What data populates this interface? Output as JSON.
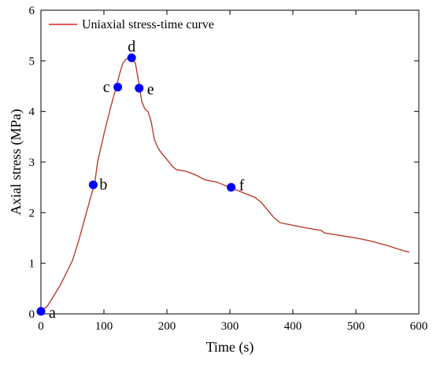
{
  "chart_data": {
    "type": "line",
    "xlabel": "Time (s)",
    "ylabel": "Axial stress (MPa)",
    "xlim": [
      0,
      600
    ],
    "ylim": [
      0,
      6
    ],
    "xticks": [
      0,
      100,
      200,
      300,
      400,
      500,
      600
    ],
    "yticks": [
      0,
      1,
      2,
      3,
      4,
      5,
      6
    ],
    "grid": false,
    "legend_position": "top-left",
    "series": [
      {
        "name": "Uniaxial stress-time curve",
        "color": "#e02020",
        "x": [
          0,
          10,
          20,
          30,
          40,
          50,
          60,
          70,
          80,
          85,
          90,
          100,
          110,
          120,
          125,
          130,
          135,
          140,
          145,
          150,
          155,
          160,
          165,
          170,
          175,
          180,
          185,
          190,
          200,
          210,
          215,
          230,
          245,
          260,
          280,
          300,
          320,
          340,
          350,
          360,
          370,
          380,
          400,
          420,
          445,
          450,
          460,
          475,
          500,
          520,
          535,
          550,
          575,
          585
        ],
        "y": [
          0.05,
          0.15,
          0.35,
          0.55,
          0.8,
          1.05,
          1.45,
          1.9,
          2.35,
          2.55,
          3.0,
          3.55,
          4.05,
          4.5,
          4.75,
          4.95,
          5.03,
          5.06,
          5.05,
          4.95,
          4.6,
          4.2,
          4.05,
          4.0,
          3.8,
          3.45,
          3.3,
          3.2,
          3.05,
          2.9,
          2.85,
          2.82,
          2.75,
          2.65,
          2.6,
          2.5,
          2.4,
          2.3,
          2.2,
          2.05,
          1.9,
          1.8,
          1.75,
          1.7,
          1.65,
          1.6,
          1.58,
          1.55,
          1.5,
          1.45,
          1.4,
          1.35,
          1.25,
          1.22
        ]
      }
    ],
    "points": [
      {
        "label": "a",
        "x": 0,
        "y": 0.05
      },
      {
        "label": "b",
        "x": 83,
        "y": 2.55
      },
      {
        "label": "c",
        "x": 122,
        "y": 4.48
      },
      {
        "label": "d",
        "x": 144,
        "y": 5.06
      },
      {
        "label": "e",
        "x": 156,
        "y": 4.46
      },
      {
        "label": "f",
        "x": 302,
        "y": 2.5
      }
    ],
    "point_color": "#0000ff"
  }
}
